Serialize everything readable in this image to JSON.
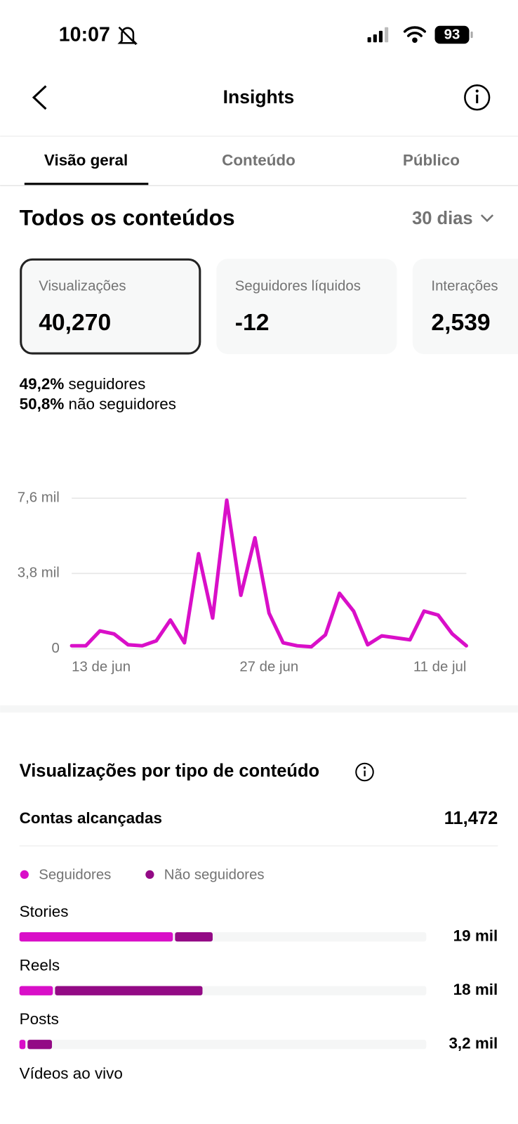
{
  "status_bar": {
    "time": "10:07",
    "battery": "93"
  },
  "header": {
    "title": "Insights"
  },
  "tabs": [
    "Visão geral",
    "Conteúdo",
    "Público"
  ],
  "section": {
    "title": "Todos os conteúdos",
    "period": "30 dias"
  },
  "cards": [
    {
      "label": "Visualizações",
      "value": "40,270"
    },
    {
      "label": "Seguidores líquidos",
      "value": "-12"
    },
    {
      "label": "Interações",
      "value": "2,539"
    }
  ],
  "breakdown": [
    {
      "pct": "49,2%",
      "label": "seguidores"
    },
    {
      "pct": "50,8%",
      "label": "não seguidores"
    }
  ],
  "chart_data": [
    {
      "type": "line",
      "categories": [
        "13 de jun",
        null,
        null,
        null,
        null,
        null,
        null,
        null,
        null,
        null,
        null,
        null,
        null,
        null,
        "27 de jun",
        null,
        null,
        null,
        null,
        null,
        null,
        null,
        null,
        null,
        null,
        null,
        null,
        null,
        "11 de jul"
      ],
      "values": [
        0.15,
        0.15,
        0.9,
        0.75,
        0.2,
        0.15,
        0.4,
        1.45,
        0.3,
        4.8,
        1.55,
        7.5,
        2.7,
        5.6,
        1.8,
        0.3,
        0.15,
        0.1,
        0.7,
        2.8,
        1.9,
        0.2,
        0.65,
        0.55,
        0.45,
        1.9,
        1.7,
        0.75,
        0.15
      ],
      "color": "#d90fc8",
      "ylim": [
        0,
        7.6
      ],
      "yticks": [
        0,
        {
          "value": 3.8,
          "label": "3,8 mil"
        },
        {
          "value": 7.6,
          "label": "7,6 mil"
        }
      ],
      "grid": true
    },
    {
      "type": "hbar_stacked",
      "title": "Visualizações por tipo de conteúdo",
      "subtitle_label": "Contas alcançadas",
      "subtitle_value": "11,472",
      "categories": [
        "Stories",
        "Reels",
        "Posts"
      ],
      "series": [
        {
          "name": "Seguidores",
          "color": "#d90fc8",
          "values": [
            15.3,
            3.5,
            0.8
          ]
        },
        {
          "name": "Não seguidores",
          "color": "#930a85",
          "values": [
            3.7,
            14.5,
            2.4
          ]
        }
      ],
      "totals": [
        19,
        18,
        3.2
      ],
      "total_labels": [
        "19 mil",
        "18 mil",
        "3,2 mil"
      ],
      "xlim": [
        0,
        40
      ],
      "cut_off_category": "Vídeos ao vivo"
    }
  ]
}
